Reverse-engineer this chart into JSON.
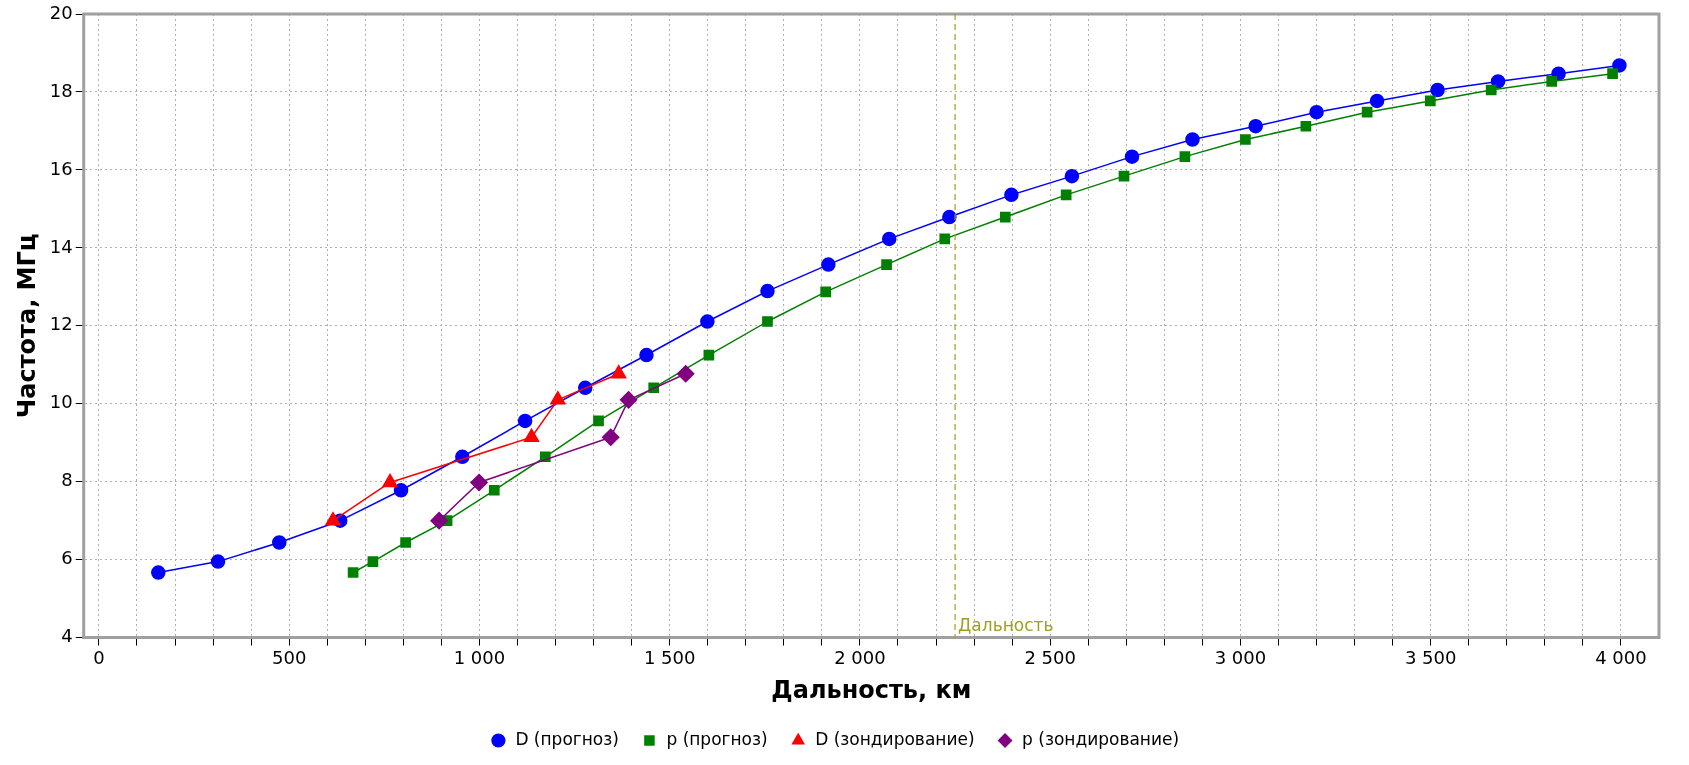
{
  "chart_data": {
    "type": "line",
    "xlabel": "Дальность, км",
    "ylabel": "Частота, МГц",
    "xlim": [
      -40,
      4100
    ],
    "ylim": [
      4,
      20
    ],
    "xticks": [
      0,
      {
        "value": 100,
        "label": null
      },
      {
        "value": 200,
        "label": null
      },
      {
        "value": 300,
        "label": null
      },
      {
        "value": 400,
        "label": null
      },
      500,
      {
        "value": 600,
        "label": null
      },
      {
        "value": 700,
        "label": null
      },
      {
        "value": 800,
        "label": null
      },
      {
        "value": 900,
        "label": null
      },
      {
        "value": 1000,
        "label": "1 000"
      },
      {
        "value": 1100,
        "label": null
      },
      {
        "value": 1200,
        "label": null
      },
      {
        "value": 1300,
        "label": null
      },
      {
        "value": 1400,
        "label": null
      },
      {
        "value": 1500,
        "label": "1 500"
      },
      {
        "value": 1600,
        "label": null
      },
      {
        "value": 1700,
        "label": null
      },
      {
        "value": 1800,
        "label": null
      },
      {
        "value": 1900,
        "label": null
      },
      {
        "value": 2000,
        "label": "2 000"
      },
      {
        "value": 2100,
        "label": null
      },
      {
        "value": 2200,
        "label": null
      },
      {
        "value": 2300,
        "label": null
      },
      {
        "value": 2400,
        "label": null
      },
      {
        "value": 2500,
        "label": "2 500"
      },
      {
        "value": 2600,
        "label": null
      },
      {
        "value": 2700,
        "label": null
      },
      {
        "value": 2800,
        "label": null
      },
      {
        "value": 2900,
        "label": null
      },
      {
        "value": 3000,
        "label": "3 000"
      },
      {
        "value": 3100,
        "label": null
      },
      {
        "value": 3200,
        "label": null
      },
      {
        "value": 3300,
        "label": null
      },
      {
        "value": 3400,
        "label": null
      },
      {
        "value": 3500,
        "label": "3 500"
      },
      {
        "value": 3600,
        "label": null
      },
      {
        "value": 3700,
        "label": null
      },
      {
        "value": 3800,
        "label": null
      },
      {
        "value": 3900,
        "label": null
      },
      {
        "value": 4000,
        "label": "4 000"
      }
    ],
    "yticks": [
      4,
      6,
      8,
      10,
      12,
      14,
      16,
      18,
      20
    ],
    "grid": true,
    "legend": "bottom",
    "line_style": "solid",
    "series": [
      {
        "name": "D (прогноз)",
        "color": "#0000ff",
        "marker": "circle",
        "x": [
          156,
          313,
          474,
          634,
          794,
          955,
          1120,
          1278,
          1439,
          1599,
          1757,
          1917,
          2077,
          2235,
          2398,
          2557,
          2715,
          2874,
          3040,
          3200,
          3359,
          3518,
          3677,
          3836,
          3996
        ],
        "values": [
          5.67,
          5.95,
          6.44,
          7.0,
          7.78,
          8.64,
          9.56,
          10.41,
          11.25,
          12.11,
          12.89,
          13.57,
          14.23,
          14.79,
          15.36,
          15.84,
          16.34,
          16.78,
          17.12,
          17.48,
          17.77,
          18.05,
          18.27,
          18.47,
          18.68
        ]
      },
      {
        "name": "p (прогноз)",
        "color": "#008000",
        "marker": "square",
        "x": [
          668,
          720,
          806,
          915,
          1039,
          1173,
          1313,
          1458,
          1603,
          1757,
          1910,
          2070,
          2223,
          2382,
          2542,
          2694,
          2854,
          3013,
          3172,
          3333,
          3499,
          3659,
          3818,
          3978
        ],
        "values": [
          5.67,
          5.95,
          6.44,
          7.0,
          7.78,
          8.64,
          9.56,
          10.41,
          11.25,
          12.11,
          12.87,
          13.57,
          14.23,
          14.79,
          15.36,
          15.84,
          16.34,
          16.78,
          17.12,
          17.48,
          17.77,
          18.05,
          18.27,
          18.47
        ]
      },
      {
        "name": "D (зондирование)",
        "color": "#ff0000",
        "marker": "triangle",
        "x": [
          615,
          765,
          1137,
          1206,
          1366
        ],
        "values": [
          7.0,
          7.98,
          9.14,
          10.1,
          10.77
        ]
      },
      {
        "name": "p (зондирование)",
        "color": "#800080",
        "marker": "diamond",
        "x": [
          894,
          999,
          1345,
          1392,
          1542
        ],
        "values": [
          7.0,
          7.98,
          9.14,
          10.1,
          10.77
        ]
      }
    ],
    "ref_lines": [
      {
        "axis": "x",
        "value": 2250,
        "label": "Дальность",
        "color": "#a0a020",
        "line_style": "dashed"
      }
    ]
  }
}
